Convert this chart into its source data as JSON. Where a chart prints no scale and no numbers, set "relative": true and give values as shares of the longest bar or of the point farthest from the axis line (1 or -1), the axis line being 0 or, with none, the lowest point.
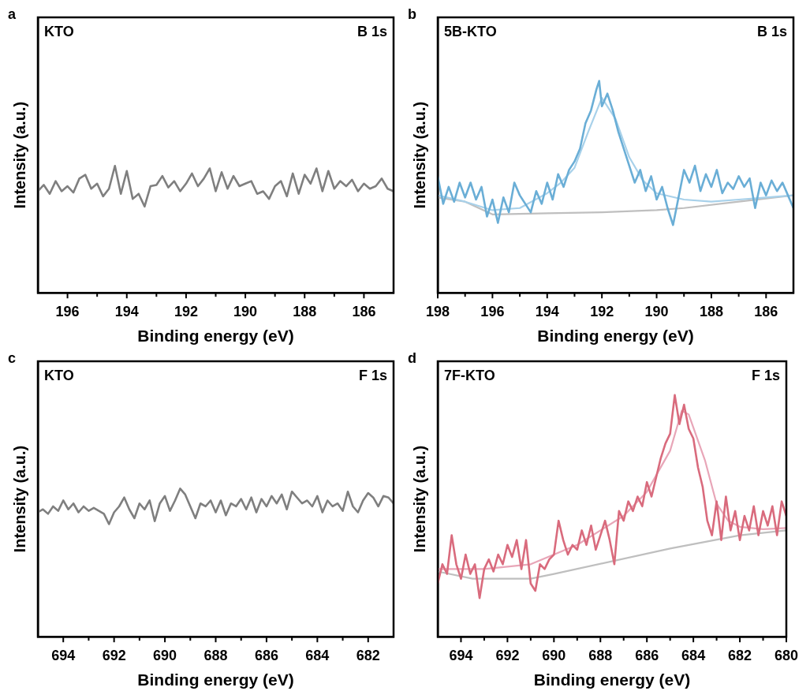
{
  "chart_data": [
    {
      "type": "line",
      "relative": true,
      "xlabel": "Binding energy (eV)",
      "ylabel": "Intensity (a.u.)",
      "annotations": [
        "a",
        "KTO",
        "B 1s"
      ],
      "xlim": [
        197,
        185
      ],
      "xticks": [
        {
          "value": 195,
          "label": null
        },
        196,
        194,
        {
          "value": 193,
          "label": null
        },
        192,
        {
          "value": 191,
          "label": null
        },
        190,
        {
          "value": 189,
          "label": null
        },
        188,
        {
          "value": 187,
          "label": null
        },
        186
      ],
      "tick_labels": "x",
      "grid": false,
      "legend": false,
      "marker": "none",
      "line_style": "solid",
      "series": [
        {
          "color": "#7f7f7f",
          "x": [
            197.0,
            196.8,
            196.6,
            196.4,
            196.2,
            196.0,
            195.8,
            195.6,
            195.4,
            195.2,
            195.0,
            194.8,
            194.6,
            194.4,
            194.2,
            194.0,
            193.8,
            193.6,
            193.4,
            193.2,
            193.0,
            192.8,
            192.6,
            192.4,
            192.2,
            192.0,
            191.8,
            191.6,
            191.4,
            191.2,
            191.0,
            190.8,
            190.6,
            190.4,
            190.2,
            190.0,
            189.8,
            189.6,
            189.4,
            189.2,
            189.0,
            188.8,
            188.6,
            188.4,
            188.2,
            188.0,
            187.8,
            187.6,
            187.4,
            187.2,
            187.0,
            186.8,
            186.6,
            186.4,
            186.2,
            186.0,
            185.8,
            185.6,
            185.4,
            185.2,
            185.0
          ],
          "values": [
            0.8,
            0.85,
            0.78,
            0.88,
            0.8,
            0.84,
            0.79,
            0.9,
            0.93,
            0.82,
            0.86,
            0.76,
            0.82,
            1.0,
            0.78,
            0.96,
            0.74,
            0.78,
            0.68,
            0.84,
            0.85,
            0.92,
            0.83,
            0.88,
            0.8,
            0.86,
            0.94,
            0.84,
            0.9,
            0.98,
            0.8,
            0.95,
            0.82,
            0.92,
            0.84,
            0.86,
            0.88,
            0.78,
            0.8,
            0.74,
            0.84,
            0.88,
            0.76,
            0.94,
            0.78,
            0.93,
            0.86,
            0.98,
            0.8,
            0.96,
            0.82,
            0.88,
            0.84,
            0.89,
            0.8,
            0.86,
            0.82,
            0.84,
            0.9,
            0.82,
            0.8
          ]
        }
      ]
    },
    {
      "type": "line",
      "relative": true,
      "xlabel": "Binding energy (eV)",
      "ylabel": "Intensity (a.u.)",
      "annotations": [
        "b",
        "5B-KTO",
        "B 1s"
      ],
      "xlim": [
        198,
        185
      ],
      "xticks": [
        198,
        {
          "value": 197,
          "label": null
        },
        196,
        {
          "value": 195,
          "label": null
        },
        194,
        {
          "value": 193,
          "label": null
        },
        192,
        {
          "value": 191,
          "label": null
        },
        190,
        {
          "value": 189,
          "label": null
        },
        188,
        {
          "value": 187,
          "label": null
        },
        186
      ],
      "tick_labels": "x",
      "grid": false,
      "legend": false,
      "marker": "none",
      "line_style": "solid",
      "series": [
        {
          "color": "#6aaed6",
          "x": [
            198.0,
            197.8,
            197.6,
            197.4,
            197.2,
            197.0,
            196.8,
            196.6,
            196.4,
            196.2,
            196.0,
            195.8,
            195.6,
            195.4,
            195.2,
            195.0,
            194.8,
            194.6,
            194.4,
            194.2,
            194.0,
            193.8,
            193.6,
            193.4,
            193.2,
            193.0,
            192.8,
            192.6,
            192.4,
            192.2,
            192.1,
            192.0,
            191.8,
            191.6,
            191.4,
            191.2,
            191.0,
            190.8,
            190.6,
            190.4,
            190.2,
            190.0,
            189.8,
            189.6,
            189.4,
            189.2,
            189.0,
            188.8,
            188.6,
            188.4,
            188.2,
            188.0,
            187.8,
            187.6,
            187.4,
            187.2,
            187.0,
            186.8,
            186.6,
            186.4,
            186.2,
            186.0,
            185.8,
            185.6,
            185.4,
            185.2,
            185.0
          ],
          "values": [
            0.55,
            0.42,
            0.5,
            0.43,
            0.52,
            0.45,
            0.52,
            0.44,
            0.5,
            0.36,
            0.44,
            0.33,
            0.45,
            0.38,
            0.52,
            0.46,
            0.42,
            0.38,
            0.48,
            0.42,
            0.52,
            0.44,
            0.56,
            0.5,
            0.58,
            0.62,
            0.68,
            0.8,
            0.86,
            0.96,
            1.0,
            0.88,
            0.94,
            0.86,
            0.76,
            0.68,
            0.6,
            0.52,
            0.58,
            0.48,
            0.55,
            0.44,
            0.5,
            0.4,
            0.32,
            0.45,
            0.58,
            0.52,
            0.6,
            0.48,
            0.56,
            0.5,
            0.58,
            0.47,
            0.52,
            0.49,
            0.55,
            0.5,
            0.54,
            0.4,
            0.52,
            0.46,
            0.53,
            0.48,
            0.52,
            0.46,
            0.4
          ]
        },
        {
          "color": "#a8d1ea",
          "x": [
            198,
            197,
            196,
            195,
            194,
            193.5,
            193,
            192.5,
            192,
            191.5,
            191,
            190.5,
            190,
            189,
            188,
            187,
            186,
            185
          ],
          "values": [
            0.46,
            0.43,
            0.39,
            0.4,
            0.47,
            0.52,
            0.59,
            0.76,
            0.92,
            0.82,
            0.64,
            0.53,
            0.47,
            0.44,
            0.43,
            0.44,
            0.45,
            0.46
          ]
        },
        {
          "color": "#bfbfbf",
          "x": [
            198,
            197,
            196,
            194,
            192,
            190,
            189,
            187,
            185
          ],
          "values": [
            0.45,
            0.43,
            0.37,
            0.375,
            0.38,
            0.39,
            0.4,
            0.43,
            0.46
          ]
        }
      ]
    },
    {
      "type": "line",
      "relative": true,
      "xlabel": "Binding energy (eV)",
      "ylabel": "Intensity (a.u.)",
      "annotations": [
        "c",
        "KTO",
        "F 1s"
      ],
      "xlim": [
        695,
        681
      ],
      "xticks": [
        694,
        {
          "value": 693,
          "label": null
        },
        692,
        {
          "value": 691,
          "label": null
        },
        690,
        {
          "value": 689,
          "label": null
        },
        688,
        {
          "value": 687,
          "label": null
        },
        686,
        {
          "value": 685,
          "label": null
        },
        684,
        {
          "value": 683,
          "label": null
        },
        682
      ],
      "tick_labels": "x",
      "grid": false,
      "legend": false,
      "marker": "none",
      "line_style": "solid",
      "series": [
        {
          "color": "#7f7f7f",
          "x": [
            695.0,
            694.8,
            694.6,
            694.4,
            694.2,
            694.0,
            693.8,
            693.6,
            693.4,
            693.2,
            693.0,
            692.8,
            692.6,
            692.4,
            692.2,
            692.0,
            691.8,
            691.6,
            691.4,
            691.2,
            691.0,
            690.8,
            690.6,
            690.4,
            690.2,
            690.0,
            689.8,
            689.6,
            689.4,
            689.2,
            689.0,
            688.8,
            688.6,
            688.4,
            688.2,
            688.0,
            687.8,
            687.6,
            687.4,
            687.2,
            687.0,
            686.8,
            686.6,
            686.4,
            686.2,
            686.0,
            685.8,
            685.6,
            685.4,
            685.2,
            685.0,
            684.8,
            684.6,
            684.4,
            684.2,
            684.0,
            683.8,
            683.6,
            683.4,
            683.2,
            683.0,
            682.8,
            682.6,
            682.4,
            682.2,
            682.0,
            681.8,
            681.6,
            681.4,
            681.2,
            681.0
          ],
          "values": [
            0.84,
            0.86,
            0.83,
            0.88,
            0.85,
            0.92,
            0.86,
            0.9,
            0.84,
            0.88,
            0.85,
            0.87,
            0.85,
            0.83,
            0.76,
            0.84,
            0.88,
            0.94,
            0.86,
            0.8,
            0.9,
            0.86,
            0.92,
            0.78,
            0.9,
            0.95,
            0.85,
            0.92,
            1.0,
            0.96,
            0.88,
            0.8,
            0.9,
            0.88,
            0.92,
            0.84,
            0.92,
            0.82,
            0.9,
            0.88,
            0.93,
            0.86,
            0.94,
            0.84,
            0.93,
            0.88,
            0.95,
            0.9,
            0.96,
            0.86,
            0.98,
            0.94,
            0.9,
            0.92,
            0.88,
            0.95,
            0.84,
            0.92,
            0.88,
            0.9,
            0.85,
            0.98,
            0.88,
            0.84,
            0.92,
            0.97,
            0.94,
            0.88,
            0.95,
            0.94,
            0.9
          ]
        }
      ]
    },
    {
      "type": "line",
      "relative": true,
      "xlabel": "Binding energy (eV)",
      "ylabel": "Intensity (a.u.)",
      "annotations": [
        "d",
        "7F-KTO",
        "F 1s"
      ],
      "xlim": [
        695,
        680
      ],
      "xticks": [
        694,
        {
          "value": 693,
          "label": null
        },
        692,
        {
          "value": 691,
          "label": null
        },
        690,
        {
          "value": 689,
          "label": null
        },
        688,
        {
          "value": 687,
          "label": null
        },
        686,
        {
          "value": 685,
          "label": null
        },
        684,
        {
          "value": 683,
          "label": null
        },
        682,
        {
          "value": 681,
          "label": null
        },
        680
      ],
      "tick_labels": "x",
      "grid": false,
      "legend": false,
      "marker": "none",
      "line_style": "solid",
      "series": [
        {
          "color": "#d96b7d",
          "x": [
            695.0,
            694.8,
            694.6,
            694.4,
            694.2,
            694.0,
            693.8,
            693.6,
            693.4,
            693.2,
            693.0,
            692.8,
            692.6,
            692.4,
            692.2,
            692.0,
            691.8,
            691.6,
            691.4,
            691.2,
            691.0,
            690.8,
            690.6,
            690.4,
            690.2,
            690.0,
            689.8,
            689.6,
            689.4,
            689.2,
            689.0,
            688.8,
            688.6,
            688.4,
            688.2,
            688.0,
            687.8,
            687.6,
            687.4,
            687.2,
            687.0,
            686.8,
            686.6,
            686.4,
            686.2,
            686.0,
            685.8,
            685.6,
            685.4,
            685.2,
            685.0,
            684.8,
            684.6,
            684.4,
            684.2,
            684.0,
            683.8,
            683.6,
            683.4,
            683.2,
            683.0,
            682.8,
            682.6,
            682.4,
            682.2,
            682.0,
            681.8,
            681.6,
            681.4,
            681.2,
            681.0,
            680.8,
            680.6,
            680.4,
            680.2,
            680.0
          ],
          "values": [
            0.22,
            0.3,
            0.26,
            0.42,
            0.3,
            0.24,
            0.34,
            0.26,
            0.3,
            0.16,
            0.28,
            0.32,
            0.27,
            0.34,
            0.3,
            0.38,
            0.33,
            0.4,
            0.28,
            0.4,
            0.22,
            0.19,
            0.3,
            0.28,
            0.32,
            0.34,
            0.48,
            0.4,
            0.34,
            0.38,
            0.36,
            0.44,
            0.38,
            0.46,
            0.36,
            0.42,
            0.48,
            0.4,
            0.3,
            0.52,
            0.48,
            0.56,
            0.52,
            0.58,
            0.54,
            0.64,
            0.58,
            0.66,
            0.74,
            0.8,
            0.84,
            1.0,
            0.88,
            0.96,
            0.86,
            0.82,
            0.7,
            0.62,
            0.48,
            0.42,
            0.56,
            0.4,
            0.58,
            0.44,
            0.52,
            0.4,
            0.5,
            0.44,
            0.54,
            0.42,
            0.52,
            0.46,
            0.54,
            0.42,
            0.56,
            0.5
          ]
        },
        {
          "color": "#e8a6b8",
          "x": [
            695,
            693,
            691,
            689,
            687,
            686,
            685,
            684.5,
            684.2,
            683.5,
            683,
            682.5,
            682,
            681,
            680
          ],
          "values": [
            0.28,
            0.28,
            0.3,
            0.38,
            0.5,
            0.6,
            0.77,
            0.935,
            0.92,
            0.73,
            0.55,
            0.48,
            0.455,
            0.445,
            0.45
          ]
        },
        {
          "color": "#bfbfbf",
          "x": [
            695,
            693.5,
            691,
            690,
            685,
            682,
            680
          ],
          "values": [
            0.27,
            0.24,
            0.24,
            0.26,
            0.365,
            0.42,
            0.44
          ]
        }
      ]
    }
  ]
}
